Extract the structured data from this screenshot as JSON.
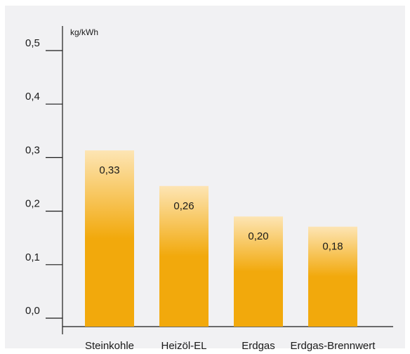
{
  "chart_data": {
    "type": "bar",
    "ylabel": "kg/kWh",
    "categories": [
      "Steinkohle",
      "Heizöl-EL",
      "Erdgas",
      "Erdgas-Brennwert"
    ],
    "values": [
      0.33,
      0.26,
      0.2,
      0.18
    ],
    "value_labels": [
      "0,33",
      "0,26",
      "0,20",
      "0,18"
    ],
    "y_ticks": [
      {
        "value": 0.0,
        "label": "0,0"
      },
      {
        "value": 0.1,
        "label": "0,1"
      },
      {
        "value": 0.2,
        "label": "0,2"
      },
      {
        "value": 0.3,
        "label": "0,3"
      },
      {
        "value": 0.4,
        "label": "0,4"
      },
      {
        "value": 0.5,
        "label": "0,5"
      }
    ],
    "ylim": [
      0,
      0.5
    ],
    "grid": false,
    "colors": {
      "bar_solid": "#f2a90c",
      "bar_light": "#fde5b4",
      "panel_background": "#f1f1f3",
      "axis": "#1a1a1a"
    }
  }
}
